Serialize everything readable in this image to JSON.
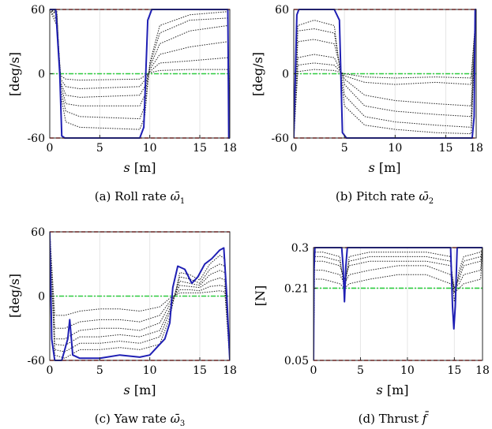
{
  "figure": {
    "panels": [
      {
        "caption": {
          "prefix": "(a) Roll rate ",
          "symbol": "ω̄",
          "sub": "1"
        },
        "ylabel": "[deg/s]",
        "xlabel": {
          "var": "s",
          "unit": " [m]"
        }
      },
      {
        "caption": {
          "prefix": "(b) Pitch rate ",
          "symbol": "ω̄",
          "sub": "2"
        },
        "ylabel": "[deg/s]",
        "xlabel": {
          "var": "s",
          "unit": " [m]"
        }
      },
      {
        "caption": {
          "prefix": "(c) Yaw rate ",
          "symbol": "ω̄",
          "sub": "3"
        },
        "ylabel": "[deg/s]",
        "xlabel": {
          "var": "s",
          "unit": " [m]"
        }
      },
      {
        "caption": {
          "prefix": "(d) Thrust ",
          "symbol": "f̄",
          "sub": ""
        },
        "ylabel": "[N]",
        "xlabel": {
          "var": "s",
          "unit": " [m]"
        }
      }
    ]
  },
  "chart_data": [
    {
      "type": "line",
      "xlim": [
        0,
        18
      ],
      "ylim": [
        -60,
        60
      ],
      "xticks": [
        0,
        5,
        10,
        15,
        18
      ],
      "yticks": [
        -60,
        0,
        60
      ],
      "grid": true,
      "colors": {
        "final": "#1f1fb4",
        "iterates": "#222222",
        "limit": "#e8201a",
        "reference": "#2ecc40"
      },
      "limits": [
        60,
        -60
      ],
      "reference": 0,
      "final_series": {
        "x": [
          0,
          0.6,
          1.0,
          1.2,
          1.5,
          9.0,
          9.4,
          9.6,
          9.8,
          10.2,
          17.8,
          17.9,
          18
        ],
        "y": [
          60,
          60,
          0,
          -58,
          -60,
          -60,
          -50,
          0,
          50,
          60,
          60,
          -60,
          -60
        ]
      },
      "iterate_series": [
        {
          "x": [
            0,
            0.7,
            1.1,
            1.6,
            3,
            9,
            9.5,
            10,
            11,
            14,
            17.8,
            18
          ],
          "y": [
            60,
            58,
            -20,
            -45,
            -50,
            -52,
            -40,
            10,
            45,
            55,
            58,
            -60
          ]
        },
        {
          "x": [
            0,
            0.7,
            1.1,
            1.6,
            3,
            9,
            9.5,
            10,
            11,
            14,
            17.8,
            18
          ],
          "y": [
            60,
            58,
            -15,
            -35,
            -40,
            -42,
            -30,
            8,
            38,
            50,
            52,
            -60
          ]
        },
        {
          "x": [
            0,
            0.7,
            1.1,
            1.6,
            3,
            9,
            9.5,
            10,
            11,
            14,
            17.8,
            18
          ],
          "y": [
            60,
            56,
            -10,
            -28,
            -30,
            -30,
            -20,
            6,
            28,
            40,
            45,
            -60
          ]
        },
        {
          "x": [
            0,
            0.7,
            1.1,
            1.6,
            3,
            9,
            9.5,
            10,
            11,
            14,
            17.8,
            18
          ],
          "y": [
            60,
            55,
            -8,
            -20,
            -22,
            -20,
            -12,
            4,
            18,
            25,
            30,
            -60
          ]
        },
        {
          "x": [
            0,
            0.7,
            1.1,
            1.6,
            3,
            9,
            9.5,
            10,
            11,
            14,
            17.8,
            18
          ],
          "y": [
            60,
            50,
            -5,
            -12,
            -14,
            -12,
            -6,
            2,
            10,
            12,
            15,
            -60
          ]
        },
        {
          "x": [
            0,
            0.7,
            1.1,
            1.6,
            3,
            9,
            9.5,
            10,
            11,
            14,
            17.8,
            18
          ],
          "y": [
            60,
            45,
            -2,
            -5,
            -6,
            -5,
            -2,
            1,
            3,
            4,
            4,
            -60
          ]
        }
      ]
    },
    {
      "type": "line",
      "xlim": [
        0,
        18
      ],
      "ylim": [
        -60,
        60
      ],
      "xticks": [
        0,
        5,
        10,
        15,
        18
      ],
      "yticks": [
        -60,
        0,
        60
      ],
      "grid": true,
      "colors": {
        "final": "#1f1fb4",
        "iterates": "#222222",
        "limit": "#e8201a",
        "reference": "#2ecc40"
      },
      "limits": [
        60,
        -60
      ],
      "reference": 0,
      "final_series": {
        "x": [
          0,
          0.3,
          0.5,
          4.0,
          4.5,
          4.8,
          5.2,
          17.6,
          17.8,
          17.9,
          18
        ],
        "y": [
          -60,
          55,
          60,
          60,
          50,
          -55,
          -60,
          -60,
          -40,
          60,
          60
        ]
      },
      "iterate_series": [
        {
          "x": [
            0,
            0.4,
            2,
            4,
            5,
            7,
            10,
            14,
            17.5,
            18
          ],
          "y": [
            -60,
            45,
            50,
            45,
            -30,
            -48,
            -52,
            -55,
            -56,
            60
          ]
        },
        {
          "x": [
            0,
            0.4,
            2,
            4,
            5,
            7,
            10,
            14,
            17.5,
            18
          ],
          "y": [
            -60,
            40,
            42,
            38,
            -20,
            -40,
            -45,
            -48,
            -50,
            60
          ]
        },
        {
          "x": [
            0,
            0.4,
            2,
            4,
            5,
            7,
            10,
            14,
            17.5,
            18
          ],
          "y": [
            -60,
            30,
            32,
            28,
            -10,
            -30,
            -35,
            -38,
            -40,
            60
          ]
        },
        {
          "x": [
            0,
            0.4,
            2,
            4,
            5,
            7,
            10,
            14,
            17.5,
            18
          ],
          "y": [
            -60,
            15,
            18,
            15,
            -5,
            -20,
            -25,
            -28,
            -30,
            60
          ]
        },
        {
          "x": [
            0,
            0.4,
            2,
            4,
            5,
            7,
            10,
            14,
            17.5,
            18
          ],
          "y": [
            -60,
            8,
            10,
            8,
            -2,
            -8,
            -10,
            -8,
            -10,
            60
          ]
        },
        {
          "x": [
            0,
            0.4,
            2,
            4,
            5,
            7,
            10,
            14,
            17.5,
            18
          ],
          "y": [
            -60,
            2,
            4,
            3,
            0,
            -3,
            -4,
            -3,
            -4,
            60
          ]
        }
      ]
    },
    {
      "type": "line",
      "xlim": [
        0,
        18
      ],
      "ylim": [
        -60,
        60
      ],
      "xticks": [
        0,
        5,
        10,
        15,
        18
      ],
      "yticks": [
        -60,
        0,
        60
      ],
      "grid": true,
      "colors": {
        "final": "#1f1fb4",
        "iterates": "#222222",
        "limit": "#e8201a",
        "reference": "#2ecc40"
      },
      "limits": [
        60,
        -60
      ],
      "reference": 0,
      "final_series": {
        "x": [
          0,
          0.2,
          0.5,
          1.2,
          1.5,
          1.8,
          2.0,
          2.3,
          3,
          5,
          7,
          9,
          10,
          11,
          11.5,
          12,
          12.3,
          12.8,
          13.5,
          14.2,
          14.8,
          15.5,
          16.2,
          17,
          17.4,
          17.7,
          18
        ],
        "y": [
          60,
          -40,
          -60,
          -60,
          -50,
          -40,
          -22,
          -55,
          -58,
          -58,
          -55,
          -57,
          -55,
          -45,
          -40,
          -25,
          8,
          28,
          25,
          12,
          18,
          30,
          35,
          43,
          45,
          0,
          -60
        ]
      },
      "iterate_series": [
        {
          "x": [
            0,
            0.5,
            1.5,
            3,
            5,
            7,
            9,
            11,
            12,
            13,
            14,
            15,
            16,
            17,
            17.5,
            18
          ],
          "y": [
            60,
            -55,
            -58,
            -50,
            -50,
            -48,
            -50,
            -45,
            -20,
            22,
            20,
            15,
            30,
            38,
            35,
            -60
          ]
        },
        {
          "x": [
            0,
            0.5,
            1.5,
            3,
            5,
            7,
            9,
            11,
            12,
            13,
            14,
            15,
            16,
            17,
            17.5,
            18
          ],
          "y": [
            60,
            -50,
            -52,
            -44,
            -44,
            -42,
            -44,
            -38,
            -15,
            18,
            16,
            12,
            25,
            30,
            28,
            -60
          ]
        },
        {
          "x": [
            0,
            0.5,
            1.5,
            3,
            5,
            7,
            9,
            11,
            12,
            13,
            14,
            15,
            16,
            17,
            17.5,
            18
          ],
          "y": [
            60,
            -45,
            -46,
            -38,
            -38,
            -36,
            -38,
            -32,
            -12,
            14,
            12,
            10,
            20,
            24,
            22,
            -60
          ]
        },
        {
          "x": [
            0,
            0.5,
            1.5,
            3,
            5,
            7,
            9,
            11,
            12,
            13,
            14,
            15,
            16,
            17,
            17.5,
            18
          ],
          "y": [
            60,
            -40,
            -40,
            -32,
            -30,
            -30,
            -32,
            -25,
            -8,
            10,
            9,
            8,
            14,
            17,
            15,
            -60
          ]
        },
        {
          "x": [
            0,
            0.5,
            1.5,
            3,
            5,
            7,
            9,
            11,
            12,
            13,
            14,
            15,
            16,
            17,
            17.5,
            18
          ],
          "y": [
            60,
            -30,
            -30,
            -24,
            -22,
            -22,
            -24,
            -18,
            -5,
            6,
            6,
            5,
            9,
            10,
            9,
            -60
          ]
        },
        {
          "x": [
            0,
            0.5,
            1.5,
            3,
            5,
            7,
            9,
            11,
            12,
            13,
            14,
            15,
            16,
            17,
            17.5,
            18
          ],
          "y": [
            60,
            -18,
            -18,
            -14,
            -12,
            -12,
            -14,
            -10,
            -2,
            3,
            3,
            3,
            4,
            5,
            4,
            -60
          ]
        }
      ]
    },
    {
      "type": "line",
      "xlim": [
        0,
        18
      ],
      "ylim": [
        0.05,
        0.3
      ],
      "xticks": [
        0,
        5,
        10,
        15,
        18
      ],
      "yticks": [
        0.05,
        0.21,
        0.3
      ],
      "grid": true,
      "colors": {
        "final": "#1f1fb4",
        "iterates": "#222222",
        "limit": "#e8201a",
        "reference": "#2ecc40"
      },
      "limits": [
        0.3,
        0.05
      ],
      "reference": 0.21,
      "final_series": {
        "x": [
          0,
          0.05,
          0.15,
          3.0,
          3.15,
          3.3,
          3.45,
          3.6,
          14.6,
          14.8,
          14.95,
          15.1,
          15.3,
          17.8,
          18
        ],
        "y": [
          0.05,
          0.25,
          0.3,
          0.3,
          0.26,
          0.18,
          0.26,
          0.3,
          0.3,
          0.17,
          0.12,
          0.17,
          0.3,
          0.3,
          0.3
        ]
      },
      "iterate_series": [
        {
          "x": [
            0,
            0.1,
            1,
            2.8,
            3.3,
            3.8,
            6,
            9,
            12,
            14.6,
            15,
            15.5,
            16,
            17.8,
            18
          ],
          "y": [
            0.05,
            0.29,
            0.29,
            0.28,
            0.2,
            0.28,
            0.29,
            0.29,
            0.29,
            0.28,
            0.18,
            0.25,
            0.28,
            0.29,
            0.3
          ]
        },
        {
          "x": [
            0,
            0.1,
            1,
            2.8,
            3.3,
            3.8,
            6,
            9,
            12,
            14.6,
            15,
            15.5,
            16,
            17.8,
            18
          ],
          "y": [
            0.05,
            0.28,
            0.28,
            0.27,
            0.22,
            0.27,
            0.28,
            0.28,
            0.28,
            0.27,
            0.2,
            0.24,
            0.27,
            0.28,
            0.3
          ]
        },
        {
          "x": [
            0,
            0.1,
            1,
            2.8,
            3.3,
            3.8,
            6,
            9,
            12,
            14.6,
            15,
            15.5,
            16,
            17.8,
            18
          ],
          "y": [
            0.05,
            0.27,
            0.27,
            0.26,
            0.23,
            0.26,
            0.27,
            0.27,
            0.27,
            0.26,
            0.21,
            0.23,
            0.26,
            0.27,
            0.3
          ]
        },
        {
          "x": [
            0,
            0.1,
            1,
            2.8,
            3.3,
            3.8,
            6,
            9,
            12,
            14.6,
            15,
            15.5,
            16,
            17.8,
            18
          ],
          "y": [
            0.05,
            0.25,
            0.25,
            0.24,
            0.22,
            0.24,
            0.25,
            0.26,
            0.26,
            0.24,
            0.21,
            0.22,
            0.24,
            0.25,
            0.3
          ]
        },
        {
          "x": [
            0,
            0.1,
            1,
            2.8,
            3.3,
            3.8,
            6,
            9,
            12,
            14.6,
            15,
            15.5,
            16,
            17.8,
            18
          ],
          "y": [
            0.05,
            0.23,
            0.23,
            0.22,
            0.21,
            0.22,
            0.23,
            0.24,
            0.24,
            0.22,
            0.2,
            0.21,
            0.22,
            0.23,
            0.3
          ]
        }
      ]
    }
  ]
}
